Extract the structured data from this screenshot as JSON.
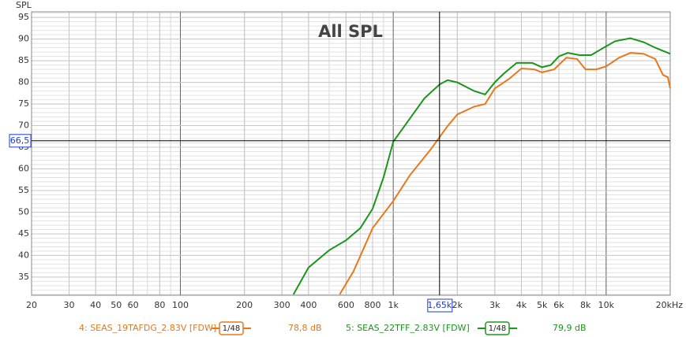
{
  "chart_data": {
    "type": "line",
    "title": "All SPL",
    "y_label": "SPL",
    "x_scale": "log",
    "grid": true,
    "xlim": [
      20,
      20000
    ],
    "ylim": [
      30.8,
      96.3
    ],
    "xticks": [
      20,
      30,
      40,
      50,
      60,
      80,
      100,
      200,
      300,
      400,
      600,
      800,
      {
        "value": 1000,
        "label": "1k"
      },
      {
        "value": 2000,
        "label": "2k"
      },
      {
        "value": 3000,
        "label": "3k"
      },
      {
        "value": 4000,
        "label": "4k"
      },
      {
        "value": 5000,
        "label": "5k"
      },
      {
        "value": 6000,
        "label": "6k"
      },
      {
        "value": 8000,
        "label": "8k"
      },
      {
        "value": 10000,
        "label": "10k"
      },
      {
        "value": 20000,
        "label": "20kHz"
      }
    ],
    "yticks": [
      35,
      40,
      45,
      50,
      55,
      60,
      65,
      70,
      75,
      80,
      85,
      90,
      95
    ],
    "cursor": {
      "x": {
        "value": 1650,
        "label": "1,65k"
      },
      "y": {
        "value": 66.5,
        "label": "66,5"
      }
    },
    "series": [
      {
        "name": "4: SEAS_19TAFDG_2.83V [FDW]",
        "color": "#e8781c",
        "smoothing": "1/48",
        "level": {
          "value": 78.8,
          "label": "78,8 dB"
        },
        "x": [
          560,
          650,
          800,
          1000,
          1200,
          1500,
          1800,
          2000,
          2400,
          2700,
          3000,
          3500,
          4000,
          4600,
          5000,
          5700,
          6500,
          7300,
          8000,
          9000,
          10000,
          11500,
          13000,
          15000,
          17000,
          18500,
          19500,
          20000
        ],
        "values": [
          31,
          36.3,
          46.3,
          52.6,
          58.6,
          64.5,
          69.9,
          72.6,
          74.4,
          75,
          78.6,
          80.8,
          83.2,
          83,
          82.3,
          83,
          85.7,
          85.4,
          83,
          83,
          83.7,
          85.7,
          86.8,
          86.6,
          85.4,
          81.7,
          81.2,
          78.6
        ]
      },
      {
        "name": "5: SEAS_22TFF_2.83V [FDW]",
        "color": "#1a961a",
        "smoothing": "1/48",
        "level": {
          "value": 79.9,
          "label": "79,9 dB"
        },
        "x": [
          340,
          400,
          500,
          600,
          700,
          800,
          900,
          1000,
          1200,
          1400,
          1650,
          1800,
          2000,
          2400,
          2700,
          3000,
          3300,
          3800,
          4500,
          5000,
          5500,
          6000,
          6600,
          7500,
          8500,
          9500,
          11000,
          13000,
          15000,
          17000,
          20000
        ],
        "values": [
          31,
          37.2,
          41.2,
          43.5,
          46.3,
          50.8,
          58,
          66.3,
          71.7,
          76.3,
          79.5,
          80.5,
          80,
          78,
          77.2,
          80,
          82,
          84.5,
          84.5,
          83.5,
          84,
          86,
          86.8,
          86.3,
          86.3,
          87.7,
          89.5,
          90.2,
          89.3,
          88,
          86.6
        ]
      }
    ]
  }
}
